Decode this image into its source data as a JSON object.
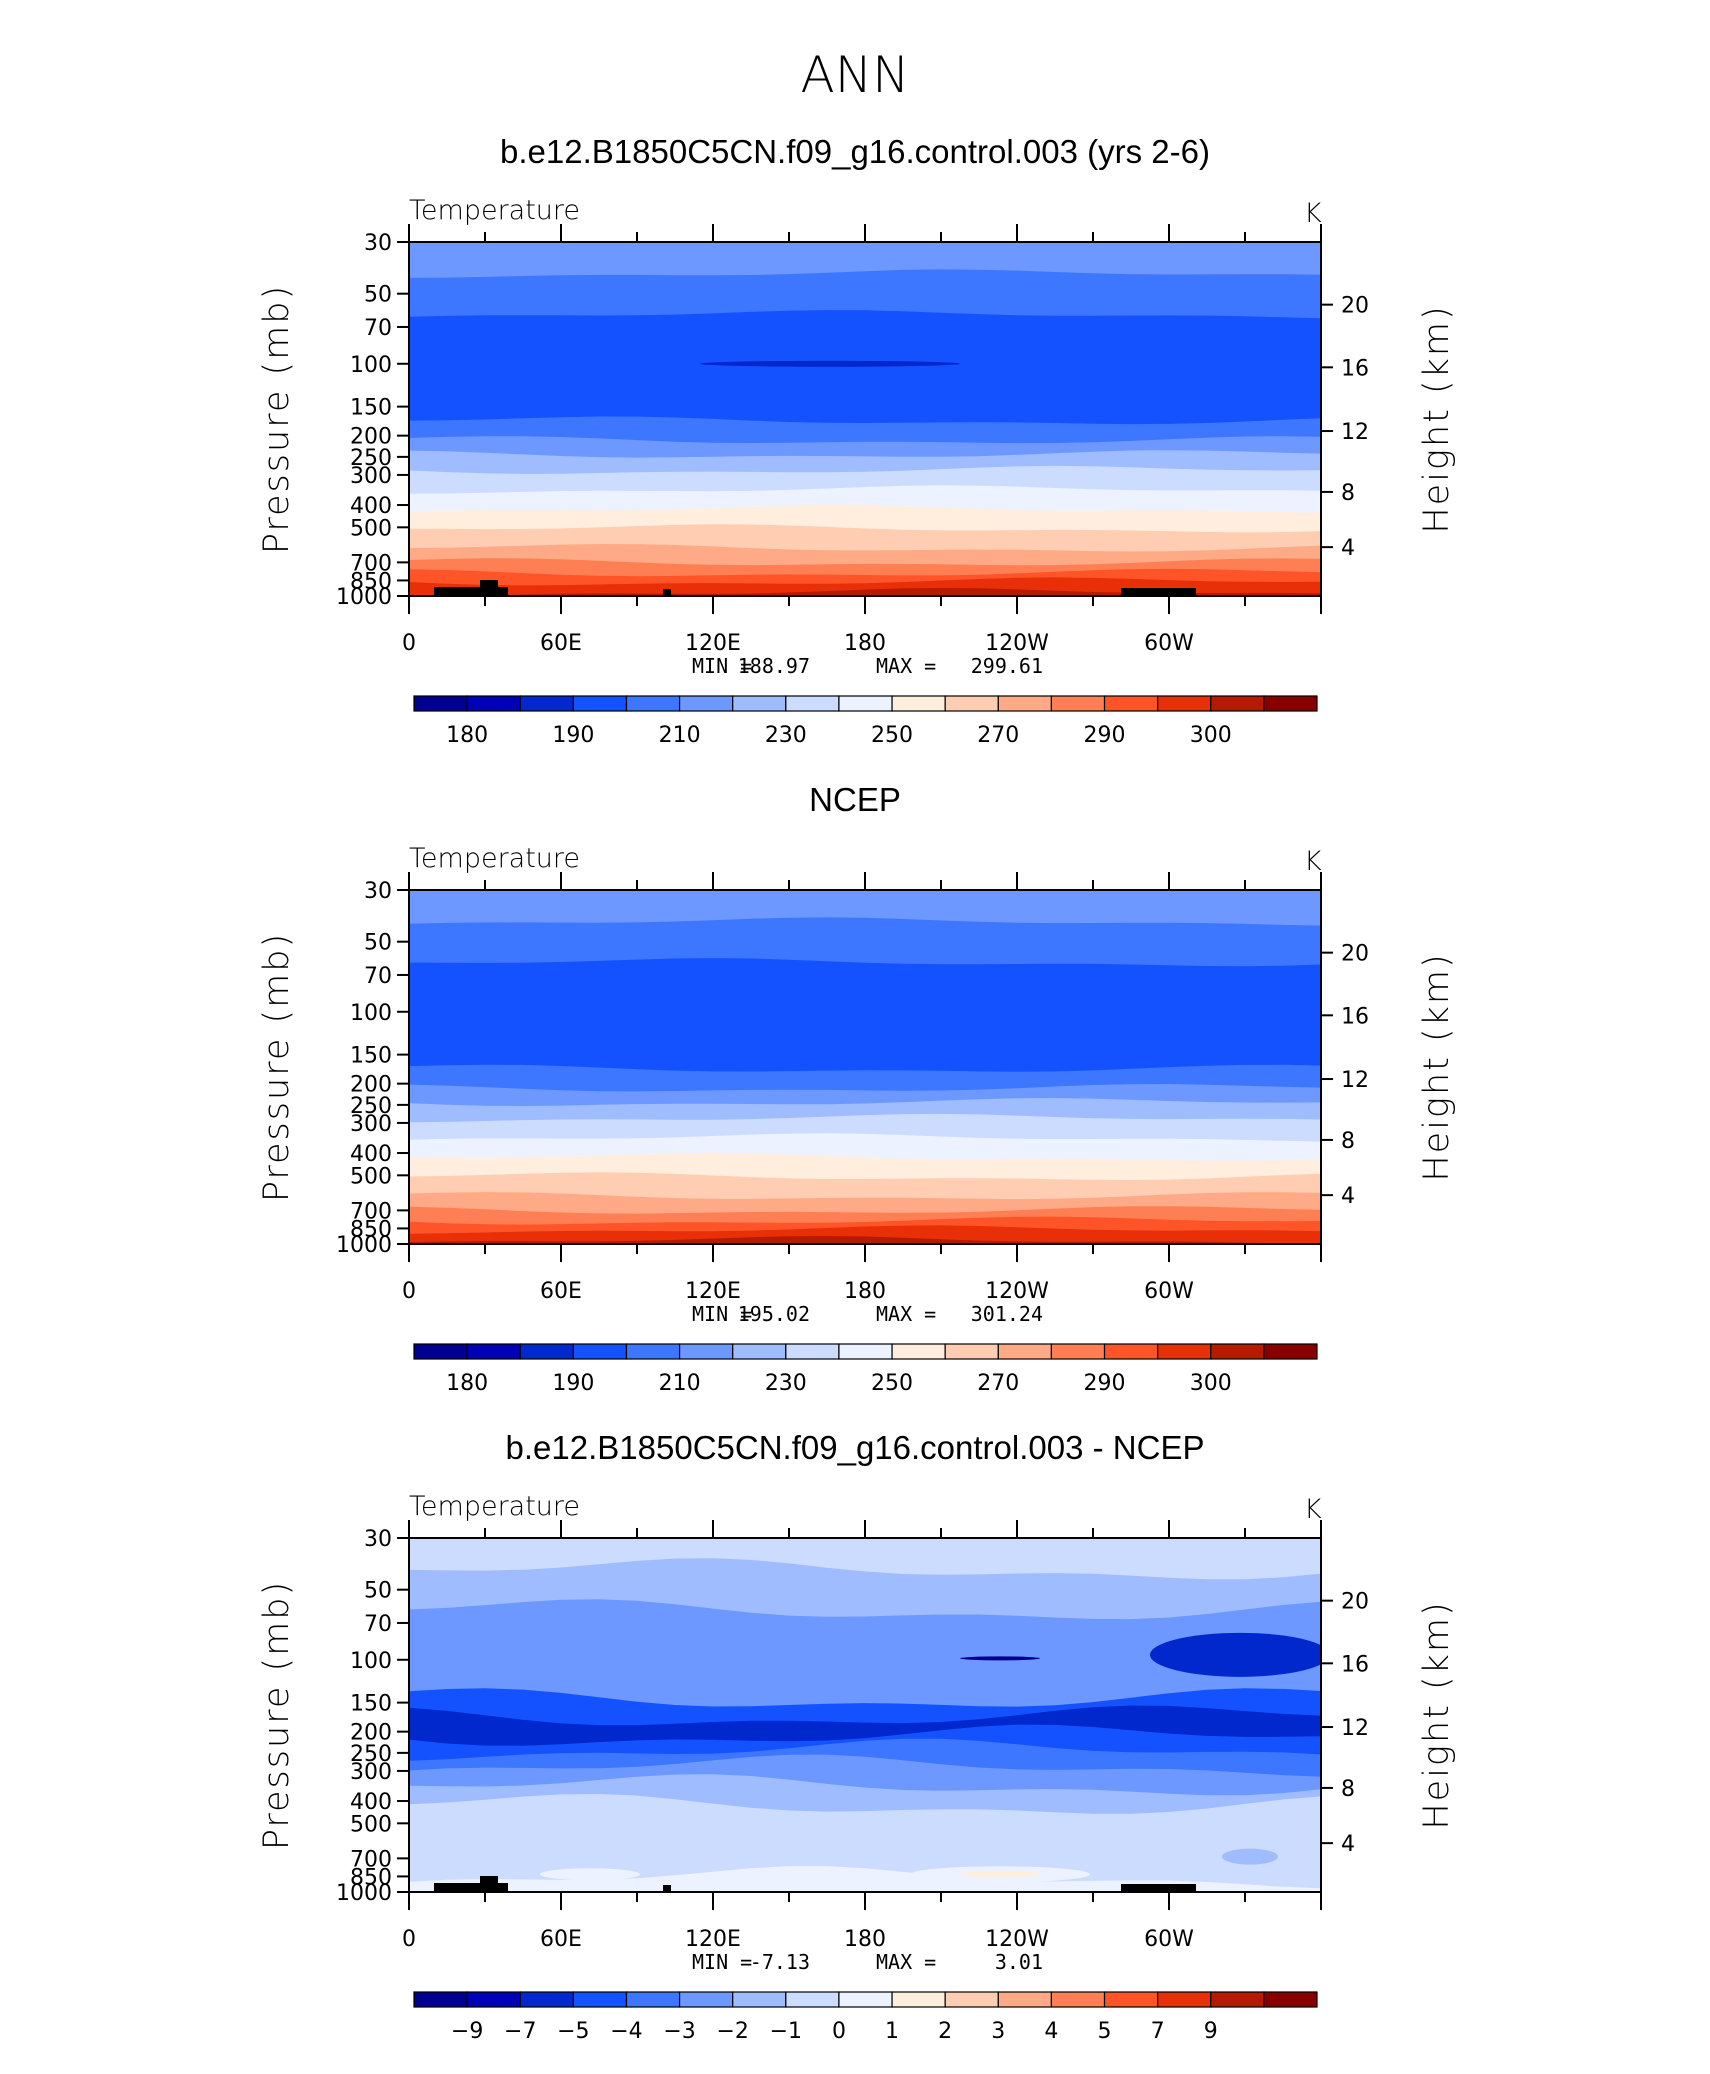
{
  "figure_title": "ANN",
  "chart_data": [
    {
      "type": "heatmap",
      "title": "b.e12.B1850C5CN.f09_g16.control.003 (yrs 2-6)",
      "variable": "Temperature",
      "units": "K",
      "xlabel": "",
      "ylabel": "Pressure (mb)",
      "ylabel_right": "Height (km)",
      "x_ticks": [
        "0",
        "60E",
        "120E",
        "180",
        "120W",
        "60W"
      ],
      "y_ticks": [
        "30",
        "50",
        "70",
        "100",
        "150",
        "200",
        "250",
        "300",
        "400",
        "500",
        "700",
        "850",
        "1000"
      ],
      "y_right_ticks": [
        "20",
        "16",
        "12",
        "8",
        "4"
      ],
      "min_label": "MIN =",
      "min_value": "188.97",
      "max_label": "MAX =",
      "max_value": "299.61",
      "levels": [
        "180",
        "190",
        "210",
        "230",
        "250",
        "270",
        "290",
        "300"
      ],
      "palette": [
        "#00008f",
        "#0000b5",
        "#0028cc",
        "#1452ff",
        "#3d76ff",
        "#6c98ff",
        "#9fbcff",
        "#cbdcff",
        "#ecf2ff",
        "#ffedde",
        "#ffcdb1",
        "#ffaa87",
        "#ff7f55",
        "#ff5428",
        "#e82f07",
        "#b51b00",
        "#870000"
      ],
      "layer_colors": [
        "#6c98ff",
        "#3d76ff",
        "#1452ff",
        "#1452ff",
        "#3d76ff",
        "#6c98ff",
        "#9fbcff",
        "#cbdcff",
        "#ecf2ff",
        "#ffedde",
        "#ffcdb1",
        "#ffaa87",
        "#ff7f55",
        "#ff5428",
        "#e82f07",
        "#b51b00"
      ],
      "feature_color": "#0028cc"
    },
    {
      "type": "heatmap",
      "title": "NCEP",
      "variable": "Temperature",
      "units": "K",
      "xlabel": "",
      "ylabel": "Pressure (mb)",
      "ylabel_right": "Height (km)",
      "x_ticks": [
        "0",
        "60E",
        "120E",
        "180",
        "120W",
        "60W"
      ],
      "y_ticks": [
        "30",
        "50",
        "70",
        "100",
        "150",
        "200",
        "250",
        "300",
        "400",
        "500",
        "700",
        "850",
        "1000"
      ],
      "y_right_ticks": [
        "20",
        "16",
        "12",
        "8",
        "4"
      ],
      "min_label": "MIN =",
      "min_value": "195.02",
      "max_label": "MAX =",
      "max_value": "301.24",
      "levels": [
        "180",
        "190",
        "210",
        "230",
        "250",
        "270",
        "290",
        "300"
      ],
      "palette": [
        "#00008f",
        "#0000b5",
        "#0028cc",
        "#1452ff",
        "#3d76ff",
        "#6c98ff",
        "#9fbcff",
        "#cbdcff",
        "#ecf2ff",
        "#ffedde",
        "#ffcdb1",
        "#ffaa87",
        "#ff7f55",
        "#ff5428",
        "#e82f07",
        "#b51b00",
        "#870000"
      ],
      "layer_colors": [
        "#6c98ff",
        "#3d76ff",
        "#1452ff",
        "#1452ff",
        "#3d76ff",
        "#6c98ff",
        "#9fbcff",
        "#cbdcff",
        "#ecf2ff",
        "#ffedde",
        "#ffcdb1",
        "#ffaa87",
        "#ff7f55",
        "#ff5428",
        "#e82f07",
        "#b51b00"
      ]
    },
    {
      "type": "heatmap",
      "title": "b.e12.B1850C5CN.f09_g16.control.003 - NCEP",
      "variable": "Temperature",
      "units": "K",
      "xlabel": "",
      "ylabel": "Pressure (mb)",
      "ylabel_right": "Height (km)",
      "x_ticks": [
        "0",
        "60E",
        "120E",
        "180",
        "120W",
        "60W"
      ],
      "y_ticks": [
        "30",
        "50",
        "70",
        "100",
        "150",
        "200",
        "250",
        "300",
        "400",
        "500",
        "700",
        "850",
        "1000"
      ],
      "y_right_ticks": [
        "20",
        "16",
        "12",
        "8",
        "4"
      ],
      "min_label": "MIN =",
      "min_value": "-7.13",
      "max_label": "MAX =",
      "max_value": "3.01",
      "levels": [
        "−9",
        "−7",
        "−5",
        "−4",
        "−3",
        "−2",
        "−1",
        "0",
        "1",
        "2",
        "3",
        "4",
        "5",
        "7",
        "9"
      ],
      "palette": [
        "#00008f",
        "#0000b5",
        "#0028cc",
        "#1452ff",
        "#3d76ff",
        "#6c98ff",
        "#9fbcff",
        "#cbdcff",
        "#ecf2ff",
        "#ffedde",
        "#ffcdb1",
        "#ffaa87",
        "#ff7f55",
        "#ff5428",
        "#e82f07",
        "#b51b00",
        "#870000"
      ],
      "layer_colors": [
        "#cbdcff",
        "#9fbcff",
        "#6c98ff",
        "#1452ff",
        "#0028cc",
        "#1452ff",
        "#3d76ff",
        "#6c98ff",
        "#9fbcff",
        "#cbdcff",
        "#cbdcff",
        "#cbdcff",
        "#cbdcff",
        "#cbdcff",
        "#ecf2ff",
        "#ecf2ff"
      ]
    }
  ]
}
